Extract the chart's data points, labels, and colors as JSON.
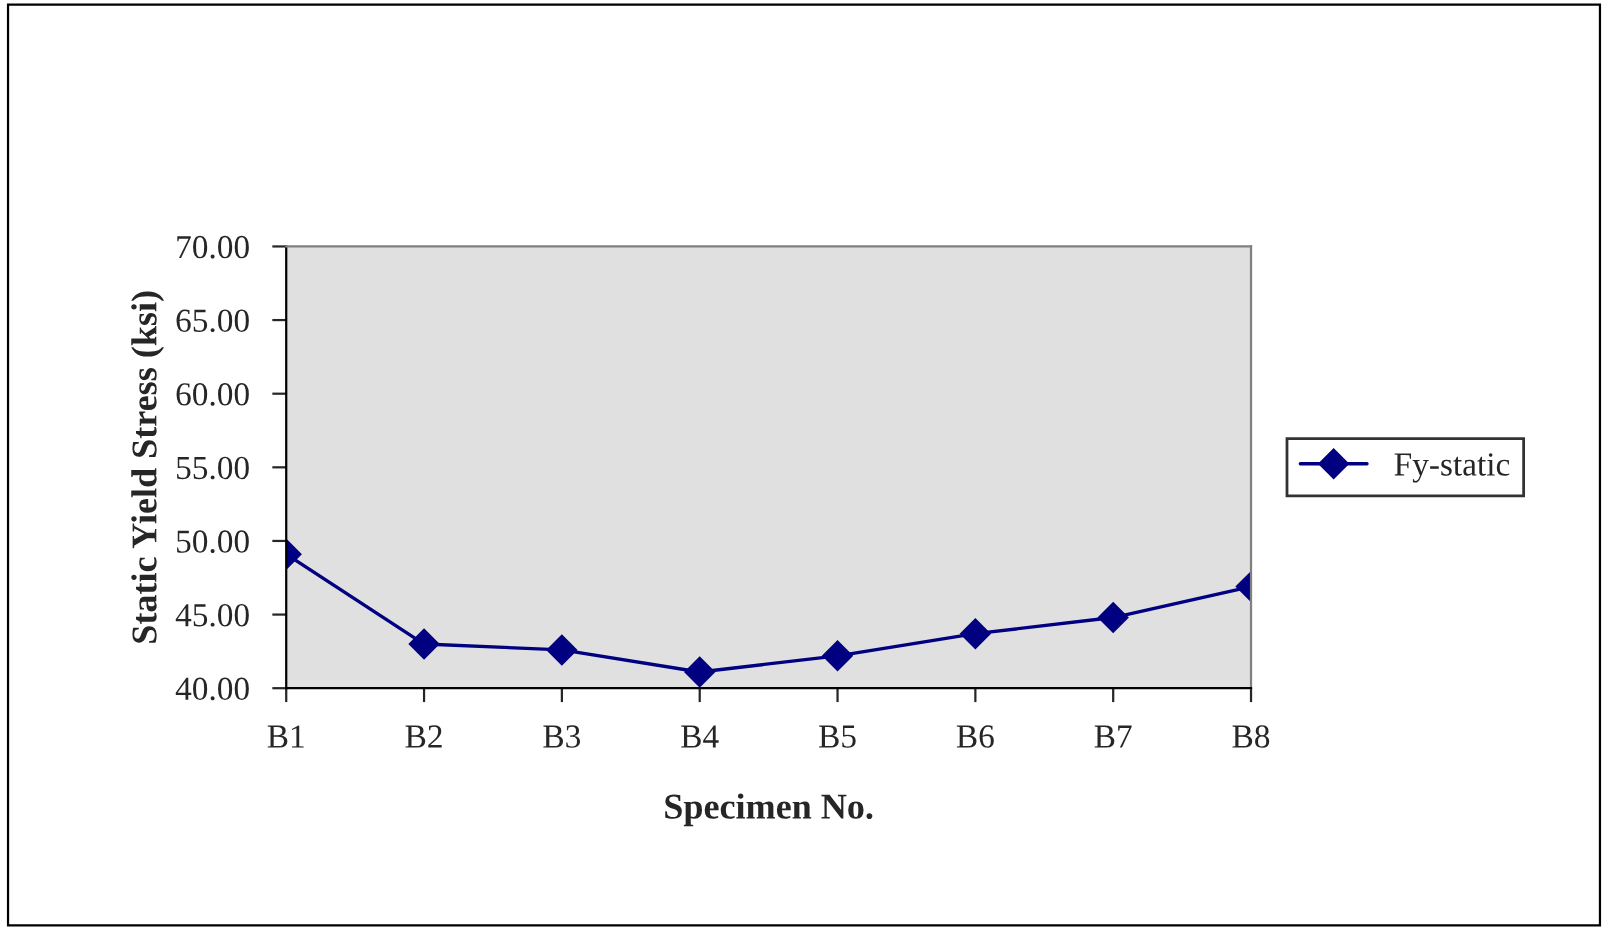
{
  "chart_data": {
    "type": "line",
    "xlabel": "Specimen No.",
    "ylabel": "Static Yield Stress (ksi)",
    "categories": [
      "B1",
      "B2",
      "B3",
      "B4",
      "B5",
      "B6",
      "B7",
      "B8"
    ],
    "series": [
      {
        "name": "Fy-static",
        "color": "#000080",
        "values": [
          49.1,
          43.0,
          42.6,
          41.1,
          42.2,
          43.7,
          44.8,
          46.9
        ]
      }
    ],
    "ylim": [
      40,
      70
    ],
    "yticks": [
      {
        "value": 40,
        "label": "40.00"
      },
      {
        "value": 45,
        "label": "45.00"
      },
      {
        "value": 50,
        "label": "50.00"
      },
      {
        "value": 55,
        "label": "55.00"
      },
      {
        "value": 60,
        "label": "60.00"
      },
      {
        "value": 65,
        "label": "65.00"
      },
      {
        "value": 70,
        "label": "70.00"
      }
    ],
    "marker": "diamond",
    "line_style": "solid",
    "grid": false,
    "legend": "right"
  }
}
